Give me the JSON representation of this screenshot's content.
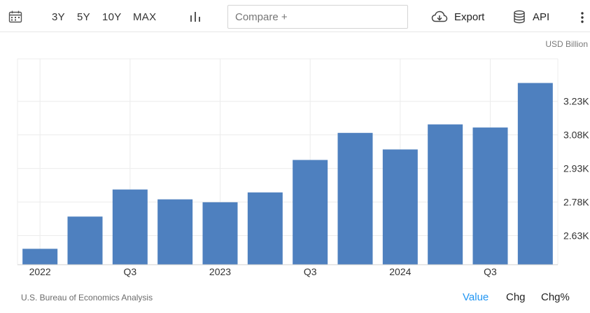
{
  "toolbar": {
    "ranges": [
      "3Y",
      "5Y",
      "10Y",
      "MAX"
    ],
    "compare_placeholder": "Compare +",
    "export_label": "Export",
    "api_label": "API"
  },
  "unit_label": "USD Billion",
  "footer": {
    "source": "U.S. Bureau of Economics Analysis",
    "tabs": [
      "Value",
      "Chg",
      "Chg%"
    ],
    "active_tab": "Value"
  },
  "colors": {
    "bar": "#4e80bf",
    "active_tab": "#2196f3"
  },
  "chart_data": {
    "type": "bar",
    "categories": [
      "2022 Q1",
      "2022 Q2",
      "2022 Q3",
      "2022 Q4",
      "2023 Q1",
      "2023 Q2",
      "2023 Q3",
      "2023 Q4",
      "2024 Q1",
      "2024 Q2",
      "2024 Q3",
      "2024 Q4"
    ],
    "values": [
      2.571,
      2.715,
      2.836,
      2.792,
      2.779,
      2.823,
      2.968,
      3.089,
      3.015,
      3.127,
      3.113,
      3.312
    ],
    "ylim": [
      2.5,
      3.42
    ],
    "y_ticks": [
      2.63,
      2.78,
      2.93,
      3.08,
      3.23
    ],
    "y_tick_labels": [
      "2.63K",
      "2.78K",
      "2.93K",
      "3.08K",
      "3.23K"
    ],
    "x_tick_labels": [
      {
        "index": 0,
        "label": "2022"
      },
      {
        "index": 2,
        "label": "Q3"
      },
      {
        "index": 4,
        "label": "2023"
      },
      {
        "index": 6,
        "label": "Q3"
      },
      {
        "index": 8,
        "label": "2024"
      },
      {
        "index": 10,
        "label": "Q3"
      }
    ],
    "grid": true,
    "y_axis_position": "right",
    "title": "",
    "xlabel": "",
    "ylabel": ""
  }
}
